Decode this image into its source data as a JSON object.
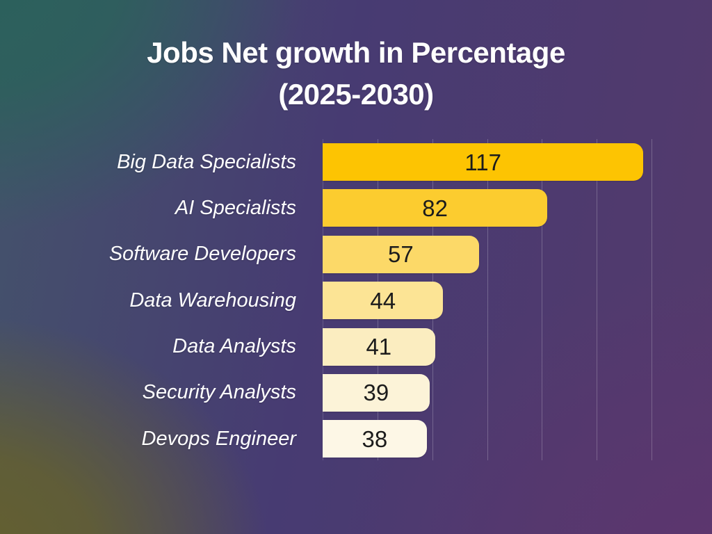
{
  "title": {
    "line1": "Jobs Net growth in Percentage",
    "line2": "(2025-2030)"
  },
  "chart_data": {
    "type": "bar",
    "orientation": "horizontal",
    "title": "Jobs Net growth in Percentage (2025-2030)",
    "categories": [
      "Big Data Specialists",
      "AI Specialists",
      "Software Developers",
      "Data Warehousing",
      "Data Analysts",
      "Security Analysts",
      "Devops Engineer"
    ],
    "values": [
      117,
      82,
      57,
      44,
      41,
      39,
      38
    ],
    "value_labels": [
      "117",
      "82",
      "57",
      "44",
      "41",
      "39",
      "38"
    ],
    "xlabel": "",
    "ylabel": "",
    "xlim": [
      0,
      139
    ],
    "grid": true,
    "grid_interval": 20,
    "legend": false,
    "bar_colors": [
      "#fdc402",
      "#fccc2f",
      "#fcd968",
      "#fce495",
      "#fbedc0",
      "#fcf3d8",
      "#fdf7e6"
    ],
    "category_label_color": "#ffffff",
    "value_label_color": "#1c1c1c",
    "gridline_color": "rgba(255,255,255,0.22)"
  },
  "background": {
    "top_left": "#2b615c",
    "top_right": "#473b72",
    "bottom_left": "#64602f",
    "bottom_right": "#5d356f"
  }
}
